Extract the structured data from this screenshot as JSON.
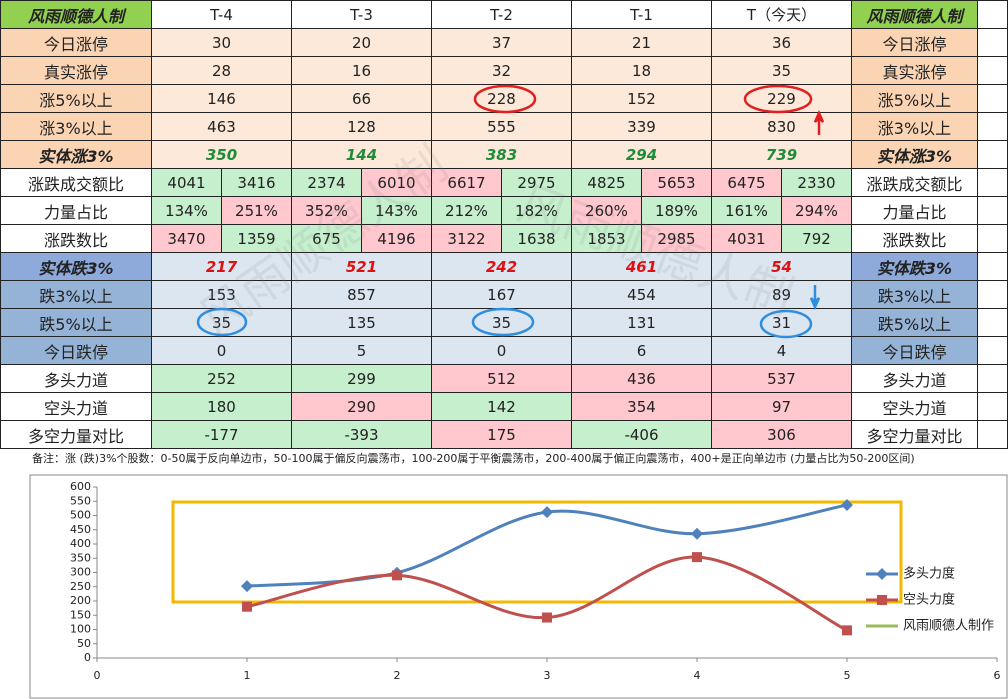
{
  "table": {
    "header": [
      "风雨顺德人制",
      "T-4",
      "T-3",
      "T-2",
      "T-1",
      "T（今天）",
      "风雨顺德人制"
    ],
    "rows": [
      {
        "label": "今日涨停",
        "cells": [
          "30",
          "20",
          "37",
          "21",
          "36"
        ],
        "label_color": "#fbd4b4",
        "cell_color": "#fde9d9"
      },
      {
        "label": "真实涨停",
        "cells": [
          "28",
          "16",
          "32",
          "18",
          "35"
        ],
        "label_color": "#fbd4b4",
        "cell_color": "#fde9d9"
      },
      {
        "label": "涨5%以上",
        "cells": [
          "146",
          "66",
          "228",
          "152",
          "229"
        ],
        "label_color": "#fbd4b4",
        "cell_color": "#fde9d9"
      },
      {
        "label": "涨3%以上",
        "cells": [
          "463",
          "128",
          "555",
          "339",
          "830"
        ],
        "label_color": "#fbd4b4",
        "cell_color": "#fde9d9"
      },
      {
        "label": "实体涨3%",
        "cells": [
          "350",
          "144",
          "383",
          "294",
          "739"
        ],
        "label_color": "#fbd4b4",
        "cell_color": "#fde9d9",
        "emphasis": true,
        "text_color": "#1e8c3a"
      },
      {
        "label": "涨跌成交额比",
        "cells": [
          "4041",
          "3416",
          "2374",
          "6010",
          "6617",
          "2975",
          "4825",
          "5653",
          "6475",
          "2330"
        ],
        "label_color": "#ffffff",
        "fills": [
          "#c6efce",
          "#c6efce",
          "#c6efce",
          "#ffc7ce",
          "#ffc7ce",
          "#c6efce",
          "#c6efce",
          "#ffc7ce",
          "#ffc7ce",
          "#c6efce"
        ]
      },
      {
        "label": "力量占比",
        "cells": [
          "134%",
          "251%",
          "352%",
          "143%",
          "212%",
          "182%",
          "260%",
          "189%",
          "161%",
          "294%"
        ],
        "label_color": "#ffffff",
        "fills": [
          "#c6efce",
          "#ffc7ce",
          "#ffc7ce",
          "#c6efce",
          "#c6efce",
          "#c6efce",
          "#ffc7ce",
          "#c6efce",
          "#c6efce",
          "#ffc7ce"
        ]
      },
      {
        "label": "涨跌数比",
        "cells": [
          "3470",
          "1359",
          "675",
          "4196",
          "3122",
          "1638",
          "1853",
          "2985",
          "4031",
          "792"
        ],
        "label_color": "#ffffff",
        "fills": [
          "#ffc7ce",
          "#c6efce",
          "#c6efce",
          "#ffc7ce",
          "#ffc7ce",
          "#c6efce",
          "#c6efce",
          "#ffc7ce",
          "#ffc7ce",
          "#c6efce"
        ]
      },
      {
        "label": "实体跌3%",
        "cells": [
          "217",
          "521",
          "242",
          "461",
          "54"
        ],
        "label_color": "#8eaadb",
        "cell_color": "#dce6f1",
        "emphasis": true,
        "text_color": "#e01010"
      },
      {
        "label": "跌3%以上",
        "cells": [
          "153",
          "857",
          "167",
          "454",
          "89"
        ],
        "label_color": "#95b3d7",
        "cell_color": "#dce6f1"
      },
      {
        "label": "跌5%以上",
        "cells": [
          "35",
          "135",
          "35",
          "131",
          "31"
        ],
        "label_color": "#95b3d7",
        "cell_color": "#dce6f1"
      },
      {
        "label": "今日跌停",
        "cells": [
          "0",
          "5",
          "0",
          "6",
          "4"
        ],
        "label_color": "#95b3d7",
        "cell_color": "#dce6f1"
      },
      {
        "label": "多头力道",
        "cells": [
          "252",
          "299",
          "512",
          "436",
          "537"
        ],
        "label_color": "#ffffff",
        "fills": [
          "#c6efce",
          "#c6efce",
          "#ffc7ce",
          "#ffc7ce",
          "#ffc7ce"
        ]
      },
      {
        "label": "空头力道",
        "cells": [
          "180",
          "290",
          "142",
          "354",
          "97"
        ],
        "label_color": "#ffffff",
        "fills": [
          "#c6efce",
          "#ffc7ce",
          "#c6efce",
          "#ffc7ce",
          "#ffc7ce"
        ]
      },
      {
        "label": "多空力量对比",
        "cells": [
          "-177",
          "-393",
          "175",
          "-406",
          "306"
        ],
        "label_color": "#ffffff",
        "fills": [
          "#c6efce",
          "#c6efce",
          "#ffc7ce",
          "#c6efce",
          "#ffc7ce"
        ]
      }
    ]
  },
  "note": "备注：涨 (跌)3%个股数：0-50属于反向单边市，50-100属于偏反向震荡市，100-200属于平衡震荡市，200-400属于偏正向震荡市，400+是正向单边市 (力量占比为50-200区间)",
  "watermark": "风雨顺德人制",
  "chart_data": {
    "type": "line",
    "x": [
      1,
      2,
      3,
      4,
      5
    ],
    "series": [
      {
        "name": "多头力度",
        "color": "#4f81bd",
        "marker": "diamond",
        "values": [
          252,
          299,
          512,
          436,
          537
        ]
      },
      {
        "name": "空头力度",
        "color": "#c0504d",
        "marker": "square",
        "values": [
          180,
          290,
          142,
          354,
          97
        ]
      },
      {
        "name": "风雨顺德人制作",
        "color": "#9bbb59"
      }
    ],
    "xlim": [
      0,
      6
    ],
    "xticks": [
      0,
      1,
      2,
      3,
      4,
      5,
      6
    ],
    "ylim": [
      0,
      600
    ],
    "yticks": [
      0,
      50,
      100,
      150,
      200,
      250,
      300,
      350,
      400,
      450,
      500,
      550,
      600
    ],
    "smooth": true
  }
}
